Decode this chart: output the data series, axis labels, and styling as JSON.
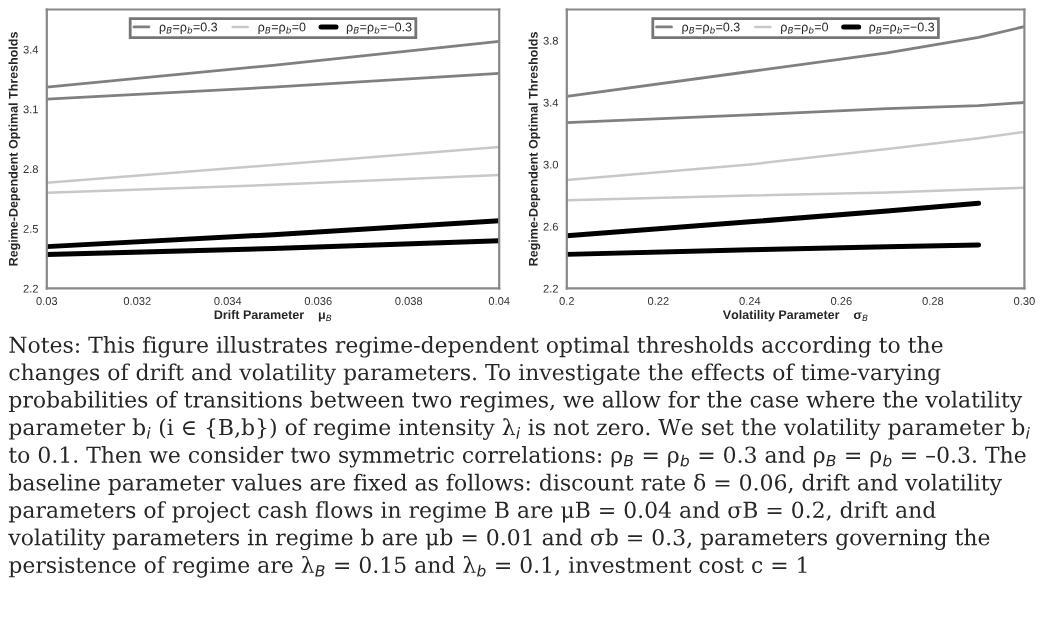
{
  "chart_data": [
    {
      "type": "line",
      "xlabel": "Drift Parameter    μ$_{B}$",
      "ylabel": "Regime-Dependent Optimal Thresholds",
      "xlim": [
        0.03,
        0.04
      ],
      "ylim": [
        2.2,
        3.6
      ],
      "xticks": [
        {
          "value": 0.03,
          "label": "0.03"
        },
        {
          "value": 0.032,
          "label": "0.032"
        },
        {
          "value": 0.034,
          "label": "0.034"
        },
        {
          "value": 0.036,
          "label": "0.036"
        },
        {
          "value": 0.038,
          "label": "0.038"
        },
        {
          "value": 0.04,
          "label": "0.04"
        }
      ],
      "yticks": [
        2.2,
        2.5,
        2.8,
        3.1,
        3.4
      ],
      "legend": "top",
      "grid": false,
      "x": [
        0.03,
        0.035,
        0.04
      ],
      "series": [
        {
          "name": "ρ$_{B}$=ρ$_{b}$=0.3",
          "color": "#808080",
          "values": [
            3.21,
            3.32,
            3.44
          ]
        },
        {
          "color": "#808080",
          "values": [
            3.15,
            3.21,
            3.28
          ]
        },
        {
          "name": "ρ$_{B}$=ρ$_{b}$=0",
          "color": "#c8c8c8",
          "values": [
            2.73,
            2.82,
            2.91
          ]
        },
        {
          "color": "#c8c8c8",
          "values": [
            2.68,
            2.72,
            2.77
          ]
        },
        {
          "name": "ρ$_{B}$=ρ$_{b}$=−0.3",
          "color": "#000000",
          "values": [
            2.41,
            2.47,
            2.54
          ]
        },
        {
          "color": "#000000",
          "values": [
            2.37,
            2.4,
            2.44
          ]
        }
      ],
      "annotations": [
        "Notes: This figure illustrates regime-dependent optimal thresholds according to the changes of drift and volatility parameters. To investigate the effects of time-varying probabilities of transitions between two regimes, we allow for the case where the volatility parameter b$_{i}$ (i ∈ {B,b}) of regime intensity λ$_{i}$ is not zero. We set the volatility parameter b$_{i}$ to 0.1. Then we consider two symmetric correlations: ρ$_{B}$ = ρ$_{b}$ = 0.3 and ρ$_{B}$ = ρ$_{b}$ = –0.3. The baseline parameter values are fixed as follows: discount rate δ = 0.06, drift and volatility parameters of project cash flows in regime B are μB = 0.04 and σB = 0.2, drift and volatility parameters in regime b are μb = 0.01 and σb = 0.3, parameters governing the persistence of regime are λ$_{B}$ = 0.15 and λ$_{b}$ = 0.1, investment cost c = 1"
      ]
    },
    {
      "type": "line",
      "xlabel": "Volatility Parameter    σ$_{B}$",
      "ylabel": "Regime-Dependent Optimal Thresholds",
      "xlim": [
        0.2,
        0.3
      ],
      "ylim": [
        2.2,
        4.0
      ],
      "xticks": [
        {
          "value": 0.2,
          "label": "0.2"
        },
        {
          "value": 0.22,
          "label": "0.22"
        },
        {
          "value": 0.24,
          "label": "0.24"
        },
        {
          "value": 0.26,
          "label": "0.26"
        },
        {
          "value": 0.28,
          "label": "0.28"
        },
        {
          "value": 0.3,
          "label": "0.30"
        }
      ],
      "yticks": [
        2.2,
        2.6,
        {
          "value": 3.0,
          "label": "3.0"
        },
        3.4,
        3.8
      ],
      "legend": "top",
      "grid": false,
      "x": [
        0.2,
        0.24,
        0.27,
        0.29,
        0.3
      ],
      "series": [
        {
          "name": "ρ$_{B}$=ρ$_{b}$=0.3",
          "color": "#808080",
          "values": [
            3.44,
            3.6,
            3.72,
            3.82,
            3.89
          ]
        },
        {
          "color": "#808080",
          "values": [
            3.27,
            3.32,
            3.36,
            3.38,
            3.4
          ]
        },
        {
          "name": "ρ$_{B}$=ρ$_{b}$=0",
          "color": "#c8c8c8",
          "values": [
            2.9,
            3.0,
            3.1,
            3.17,
            3.21
          ]
        },
        {
          "color": "#c8c8c8",
          "values": [
            2.77,
            2.8,
            2.82,
            2.84,
            2.85
          ]
        },
        {
          "name": "ρ$_{B}$=ρ$_{b}$=−0.3",
          "color": "#000000",
          "values": [
            2.54,
            2.63,
            2.7,
            2.75,
            null
          ]
        },
        {
          "color": "#000000",
          "values": [
            2.42,
            2.45,
            2.47,
            2.48,
            null
          ]
        }
      ]
    }
  ]
}
